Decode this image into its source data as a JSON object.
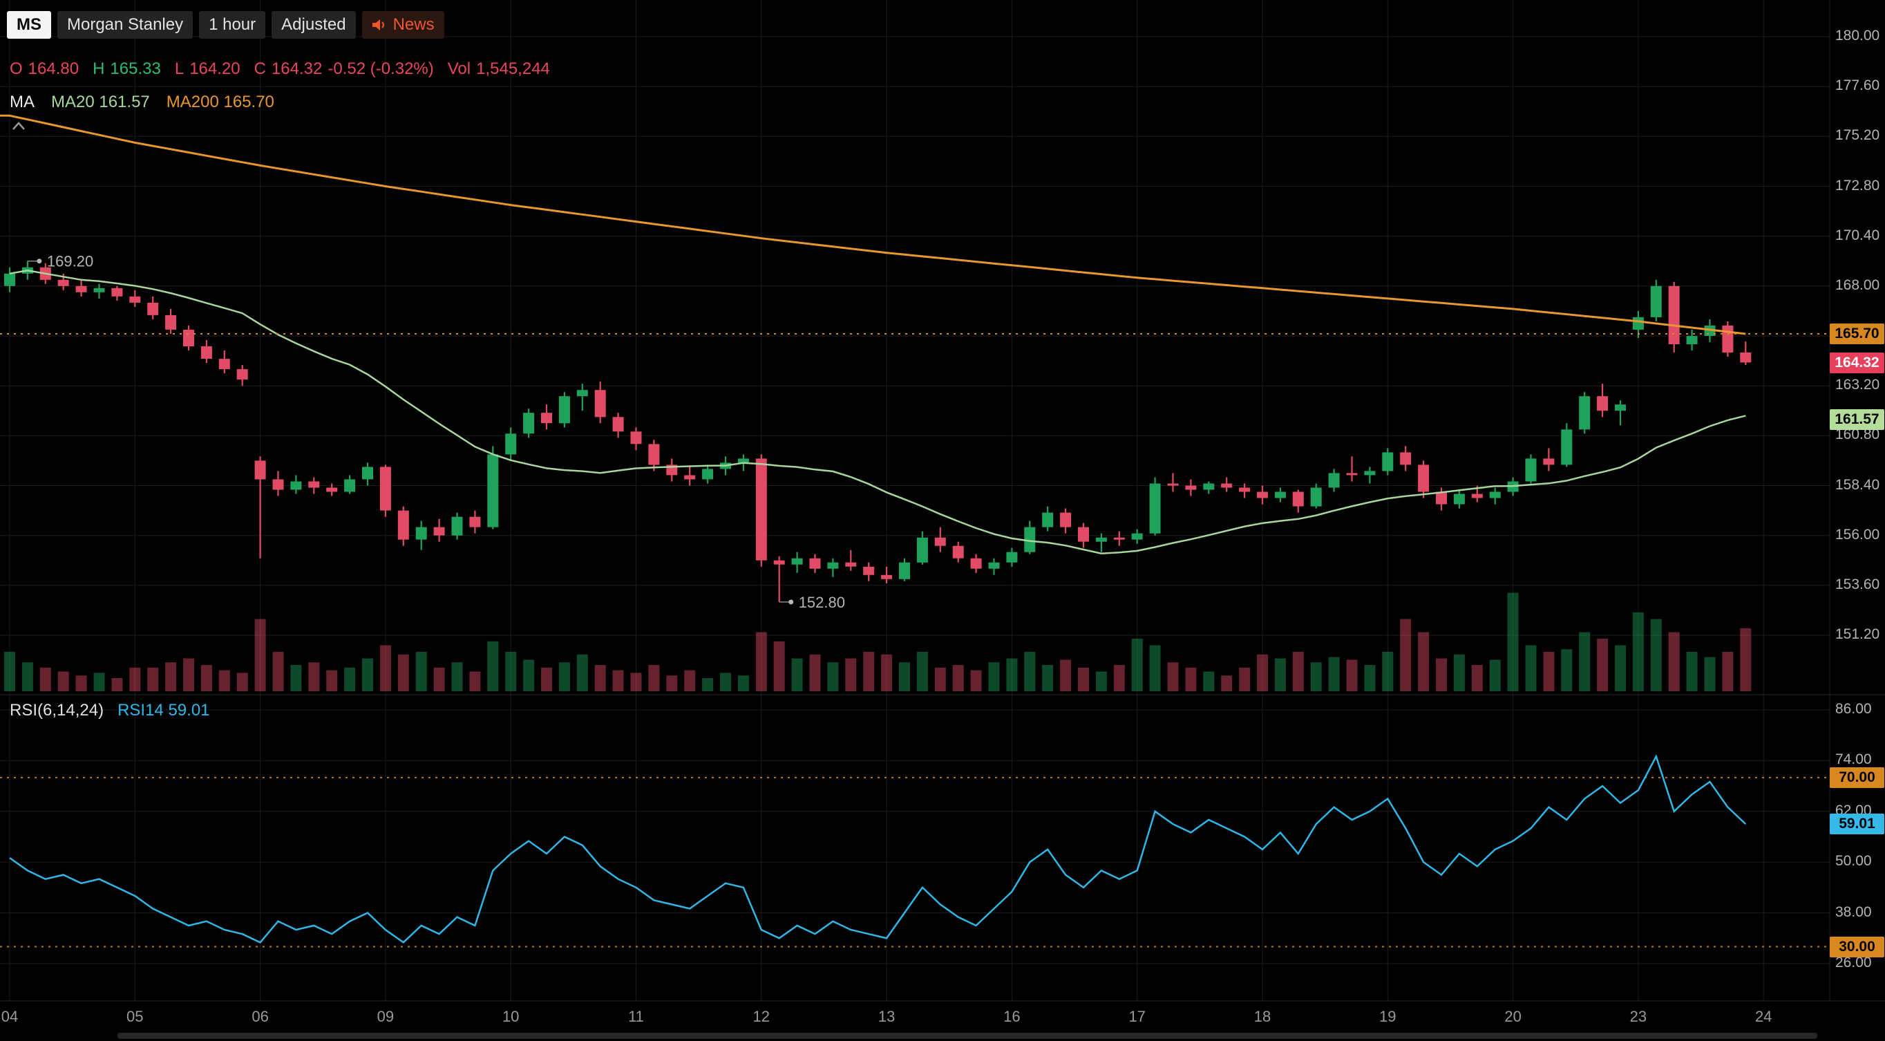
{
  "header": {
    "symbol_badge": "MS",
    "symbol_name": "Morgan Stanley",
    "interval": "1 hour",
    "adjusted": "Adjusted",
    "news_label": "News",
    "ohlc": {
      "open_label": "O",
      "open": "164.80",
      "high_label": "H",
      "high": "165.33",
      "low_label": "L",
      "low": "164.20",
      "close_label": "C",
      "close": "164.32",
      "change": "-0.52 (-0.32%)",
      "volume_label": "Vol",
      "volume": "1,545,244"
    },
    "ma_legend": {
      "label": "MA",
      "ma20": "MA20 161.57",
      "ma200": "MA200 165.70"
    }
  },
  "rsi_legend": {
    "label": "RSI(6,14,24)",
    "value": "RSI14 59.01"
  },
  "axis": {
    "price_ticks": [
      "180.00",
      "177.60",
      "175.20",
      "172.80",
      "170.40",
      "168.00",
      "165.60",
      "163.20",
      "160.80",
      "158.40",
      "156.00",
      "153.60",
      "151.20"
    ],
    "rsi_ticks": [
      "86.00",
      "74.00",
      "62.00",
      "50.00",
      "38.00",
      "26.00"
    ],
    "time_labels": [
      "04",
      "05",
      "06",
      "09",
      "10",
      "11",
      "12",
      "13",
      "16",
      "17",
      "18",
      "19",
      "20",
      "23",
      "24"
    ]
  },
  "badges": {
    "ma200_price": {
      "label": "165.70",
      "value": 165.7
    },
    "last_price": {
      "label": "164.32",
      "value": 164.32
    },
    "ma20_price": {
      "label": "161.57",
      "value": 161.57
    },
    "rsi_upper": {
      "label": "70.00",
      "value": 70
    },
    "rsi_current": {
      "label": "59.01",
      "value": 59.01
    },
    "rsi_lower": {
      "label": "30.00",
      "value": 30
    }
  },
  "annotations": [
    {
      "text": "169.20",
      "candle_index": 1,
      "price": 169.2,
      "placement": "above"
    },
    {
      "text": "152.80",
      "candle_index": 43,
      "price": 152.8,
      "placement": "below"
    }
  ],
  "colors": {
    "up": "#1fa35c",
    "down": "#e24b66",
    "ma20": "#a8d79b",
    "ma200": "#e8972e",
    "rsi": "#2fb7e8",
    "badge_orange": "#d9881f",
    "badge_red": "#e8405c",
    "badge_green": "#b5dd9a",
    "badge_blue": "#35b9e9",
    "news": "#f0562b",
    "grid": "#1c1c1c",
    "axis_text": "#b4b4b4"
  },
  "chart_data": {
    "type": "candlestick",
    "symbol": "MS",
    "interval": "1 hour",
    "price_axis_range": [
      151.2,
      180.0
    ],
    "rsi_axis_range": [
      26,
      86
    ],
    "candles_per_day": 7,
    "ohlc": [
      [
        168.0,
        168.9,
        167.7,
        168.6
      ],
      [
        168.6,
        169.2,
        168.3,
        168.9
      ],
      [
        168.9,
        169.1,
        168.1,
        168.3
      ],
      [
        168.3,
        168.6,
        167.8,
        168.0
      ],
      [
        168.0,
        168.3,
        167.5,
        167.7
      ],
      [
        167.7,
        168.1,
        167.4,
        167.9
      ],
      [
        167.9,
        168.0,
        167.3,
        167.5
      ],
      [
        167.5,
        167.8,
        167.0,
        167.2
      ],
      [
        167.2,
        167.5,
        166.4,
        166.6
      ],
      [
        166.6,
        166.9,
        165.7,
        165.9
      ],
      [
        165.9,
        166.1,
        164.9,
        165.1
      ],
      [
        165.1,
        165.4,
        164.3,
        164.5
      ],
      [
        164.5,
        164.9,
        163.8,
        164.0
      ],
      [
        164.0,
        164.2,
        163.2,
        163.5
      ],
      [
        159.6,
        159.8,
        154.9,
        158.7
      ],
      [
        158.7,
        159.1,
        157.9,
        158.2
      ],
      [
        158.2,
        158.9,
        158.0,
        158.6
      ],
      [
        158.6,
        158.8,
        158.0,
        158.3
      ],
      [
        158.3,
        158.5,
        157.9,
        158.1
      ],
      [
        158.1,
        158.9,
        158.0,
        158.7
      ],
      [
        158.7,
        159.5,
        158.4,
        159.3
      ],
      [
        159.3,
        159.4,
        156.9,
        157.2
      ],
      [
        157.2,
        157.4,
        155.5,
        155.8
      ],
      [
        155.8,
        156.7,
        155.3,
        156.4
      ],
      [
        156.4,
        156.8,
        155.7,
        156.0
      ],
      [
        156.0,
        157.1,
        155.8,
        156.9
      ],
      [
        156.9,
        157.2,
        156.1,
        156.4
      ],
      [
        156.4,
        160.3,
        156.3,
        159.9
      ],
      [
        159.9,
        161.2,
        159.6,
        160.9
      ],
      [
        160.9,
        162.1,
        160.7,
        161.9
      ],
      [
        161.9,
        162.3,
        161.1,
        161.4
      ],
      [
        161.4,
        162.9,
        161.2,
        162.7
      ],
      [
        162.7,
        163.3,
        162.0,
        163.0
      ],
      [
        163.0,
        163.4,
        161.4,
        161.7
      ],
      [
        161.7,
        161.9,
        160.7,
        161.0
      ],
      [
        161.0,
        161.2,
        160.1,
        160.4
      ],
      [
        160.4,
        160.6,
        159.1,
        159.4
      ],
      [
        159.4,
        159.7,
        158.6,
        158.9
      ],
      [
        158.9,
        159.3,
        158.4,
        158.7
      ],
      [
        158.7,
        159.4,
        158.5,
        159.2
      ],
      [
        159.2,
        159.8,
        158.9,
        159.5
      ],
      [
        159.5,
        159.9,
        159.1,
        159.7
      ],
      [
        159.7,
        159.9,
        154.5,
        154.8
      ],
      [
        154.8,
        155.0,
        152.8,
        154.6
      ],
      [
        154.6,
        155.2,
        154.2,
        154.9
      ],
      [
        154.9,
        155.1,
        154.2,
        154.4
      ],
      [
        154.4,
        154.9,
        154.0,
        154.7
      ],
      [
        154.7,
        155.3,
        154.3,
        154.5
      ],
      [
        154.5,
        154.7,
        153.8,
        154.1
      ],
      [
        154.1,
        154.5,
        153.7,
        153.9
      ],
      [
        153.9,
        154.9,
        153.8,
        154.7
      ],
      [
        154.7,
        156.2,
        154.6,
        155.9
      ],
      [
        155.9,
        156.4,
        155.2,
        155.5
      ],
      [
        155.5,
        155.7,
        154.7,
        154.9
      ],
      [
        154.9,
        155.1,
        154.2,
        154.4
      ],
      [
        154.4,
        154.9,
        154.1,
        154.7
      ],
      [
        154.7,
        155.4,
        154.5,
        155.2
      ],
      [
        155.2,
        156.7,
        155.1,
        156.4
      ],
      [
        156.4,
        157.4,
        156.2,
        157.1
      ],
      [
        157.1,
        157.3,
        156.1,
        156.4
      ],
      [
        156.4,
        156.6,
        155.4,
        155.7
      ],
      [
        155.7,
        156.1,
        155.2,
        155.9
      ],
      [
        155.9,
        156.2,
        155.5,
        155.8
      ],
      [
        155.8,
        156.3,
        155.6,
        156.1
      ],
      [
        156.1,
        158.8,
        156.0,
        158.5
      ],
      [
        158.5,
        159.0,
        158.1,
        158.4
      ],
      [
        158.4,
        158.7,
        157.9,
        158.2
      ],
      [
        158.2,
        158.6,
        158.0,
        158.5
      ],
      [
        158.5,
        158.8,
        158.1,
        158.3
      ],
      [
        158.3,
        158.5,
        157.8,
        158.1
      ],
      [
        158.1,
        158.4,
        157.5,
        157.8
      ],
      [
        157.8,
        158.3,
        157.6,
        158.1
      ],
      [
        158.1,
        158.2,
        157.1,
        157.4
      ],
      [
        157.4,
        158.5,
        157.3,
        158.3
      ],
      [
        158.3,
        159.2,
        158.1,
        159.0
      ],
      [
        159.0,
        159.8,
        158.6,
        158.9
      ],
      [
        158.9,
        159.3,
        158.5,
        159.1
      ],
      [
        159.1,
        160.2,
        158.9,
        160.0
      ],
      [
        160.0,
        160.3,
        159.1,
        159.4
      ],
      [
        159.4,
        159.6,
        157.8,
        158.1
      ],
      [
        158.1,
        158.3,
        157.2,
        157.5
      ],
      [
        157.5,
        158.2,
        157.3,
        158.0
      ],
      [
        158.0,
        158.4,
        157.6,
        157.8
      ],
      [
        157.8,
        158.3,
        157.5,
        158.1
      ],
      [
        158.1,
        158.8,
        157.9,
        158.6
      ],
      [
        158.6,
        159.9,
        158.5,
        159.7
      ],
      [
        159.7,
        160.2,
        159.1,
        159.4
      ],
      [
        159.4,
        161.4,
        159.3,
        161.1
      ],
      [
        161.1,
        162.9,
        160.9,
        162.7
      ],
      [
        162.7,
        163.3,
        161.7,
        162.0
      ],
      [
        162.0,
        162.5,
        161.3,
        162.3
      ],
      [
        165.9,
        166.8,
        165.5,
        166.5
      ],
      [
        166.5,
        168.3,
        166.3,
        168.0
      ],
      [
        168.0,
        168.2,
        164.8,
        165.2
      ],
      [
        165.2,
        165.9,
        164.9,
        165.6
      ],
      [
        165.6,
        166.4,
        165.3,
        166.1
      ],
      [
        166.1,
        166.3,
        164.6,
        164.8
      ],
      [
        164.8,
        165.33,
        164.2,
        164.32
      ]
    ],
    "volume_rel": [
      30,
      22,
      18,
      15,
      12,
      14,
      10,
      18,
      18,
      22,
      25,
      20,
      16,
      14,
      55,
      30,
      20,
      22,
      16,
      18,
      25,
      35,
      28,
      30,
      18,
      22,
      15,
      38,
      30,
      24,
      18,
      22,
      28,
      20,
      16,
      14,
      20,
      12,
      16,
      10,
      14,
      12,
      45,
      38,
      25,
      28,
      22,
      25,
      30,
      28,
      22,
      30,
      18,
      20,
      16,
      22,
      25,
      30,
      20,
      24,
      18,
      15,
      20,
      40,
      35,
      22,
      18,
      15,
      12,
      18,
      28,
      25,
      30,
      22,
      26,
      24,
      20,
      30,
      55,
      45,
      25,
      28,
      20,
      24,
      75,
      35,
      30,
      32,
      45,
      40,
      35,
      60,
      55,
      45,
      30,
      26,
      30,
      48
    ],
    "rsi14": [
      51,
      48,
      46,
      47,
      45,
      46,
      44,
      42,
      39,
      37,
      35,
      36,
      34,
      33,
      31,
      36,
      34,
      35,
      33,
      36,
      38,
      34,
      31,
      35,
      33,
      37,
      35,
      48,
      52,
      55,
      52,
      56,
      54,
      49,
      46,
      44,
      41,
      40,
      39,
      42,
      45,
      44,
      34,
      32,
      35,
      33,
      36,
      34,
      33,
      32,
      38,
      44,
      40,
      37,
      35,
      39,
      43,
      50,
      53,
      47,
      44,
      48,
      46,
      48,
      62,
      59,
      57,
      60,
      58,
      56,
      53,
      57,
      52,
      59,
      63,
      60,
      62,
      65,
      58,
      50,
      47,
      52,
      49,
      53,
      55,
      58,
      63,
      60,
      65,
      68,
      64,
      67,
      75,
      62,
      66,
      69,
      63,
      59.01
    ],
    "ma200_anchors": [
      [
        0,
        176.2
      ],
      [
        7,
        174.9
      ],
      [
        14,
        173.8
      ],
      [
        21,
        172.8
      ],
      [
        28,
        171.9
      ],
      [
        35,
        171.1
      ],
      [
        42,
        170.3
      ],
      [
        49,
        169.6
      ],
      [
        56,
        169.0
      ],
      [
        63,
        168.4
      ],
      [
        70,
        167.9
      ],
      [
        77,
        167.4
      ],
      [
        84,
        166.9
      ],
      [
        91,
        166.3
      ],
      [
        97,
        165.7
      ]
    ],
    "overlays": {
      "ma200_level_line": 165.7,
      "rsi_bands": [
        70,
        30
      ]
    }
  }
}
